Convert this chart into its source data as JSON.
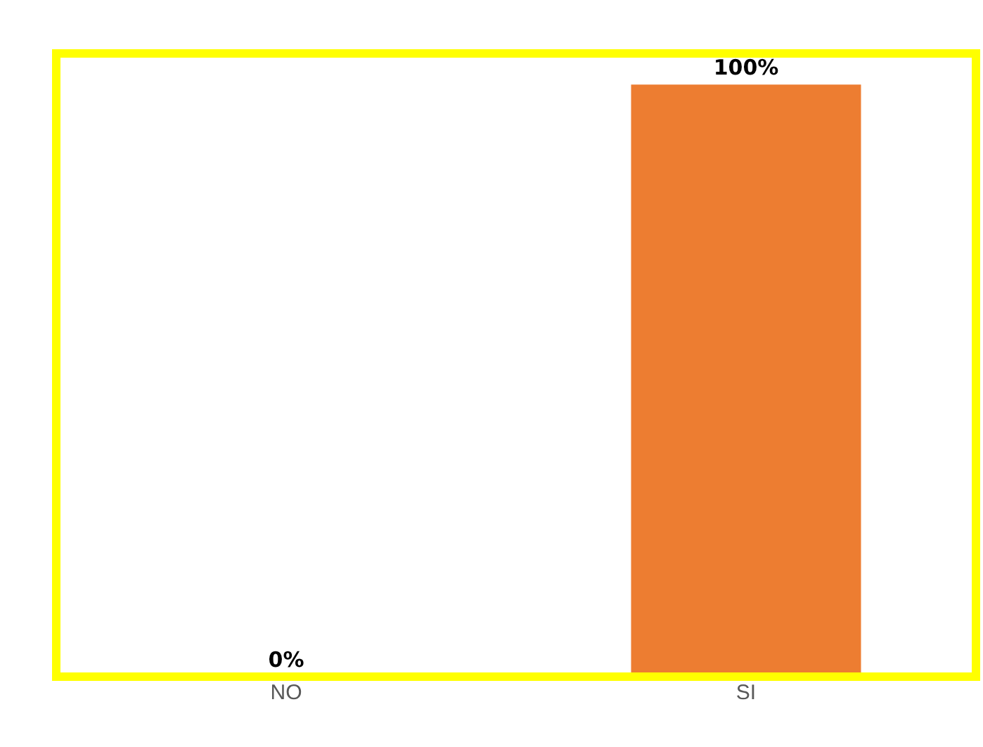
{
  "chart_data": {
    "type": "bar",
    "categories": [
      "NO",
      "SI"
    ],
    "values": [
      0,
      100
    ],
    "color": "#ed7d31",
    "value_labels": [
      "0%",
      "100%"
    ]
  }
}
